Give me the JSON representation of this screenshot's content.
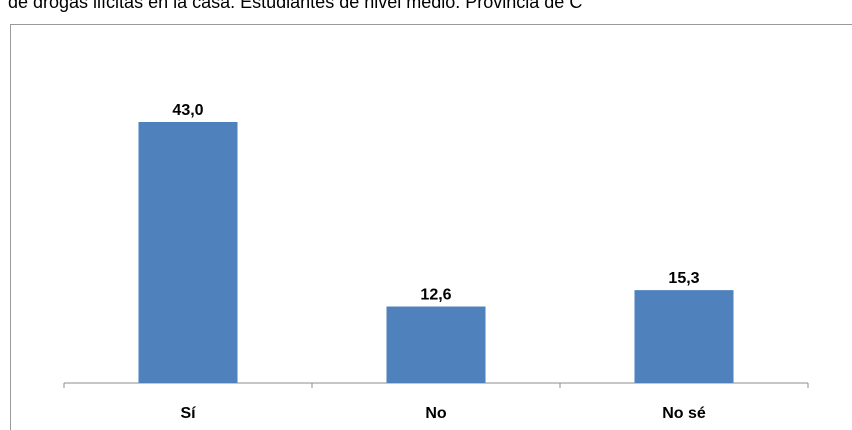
{
  "title_fragment": "de drogas ilícitas en la casa. Estudiantes de nivel medio. Provincia de C",
  "colors": {
    "bar": "#4f81bd",
    "axis": "#8c8c8c"
  },
  "chart_data": {
    "type": "bar",
    "categories": [
      "Sí",
      "No",
      "No sé"
    ],
    "values": [
      43.0,
      12.6,
      15.3
    ],
    "data_labels": [
      "43,0",
      "12,6",
      "15,3"
    ],
    "ylim": [
      0,
      50
    ],
    "grid": false,
    "legend": "none"
  }
}
